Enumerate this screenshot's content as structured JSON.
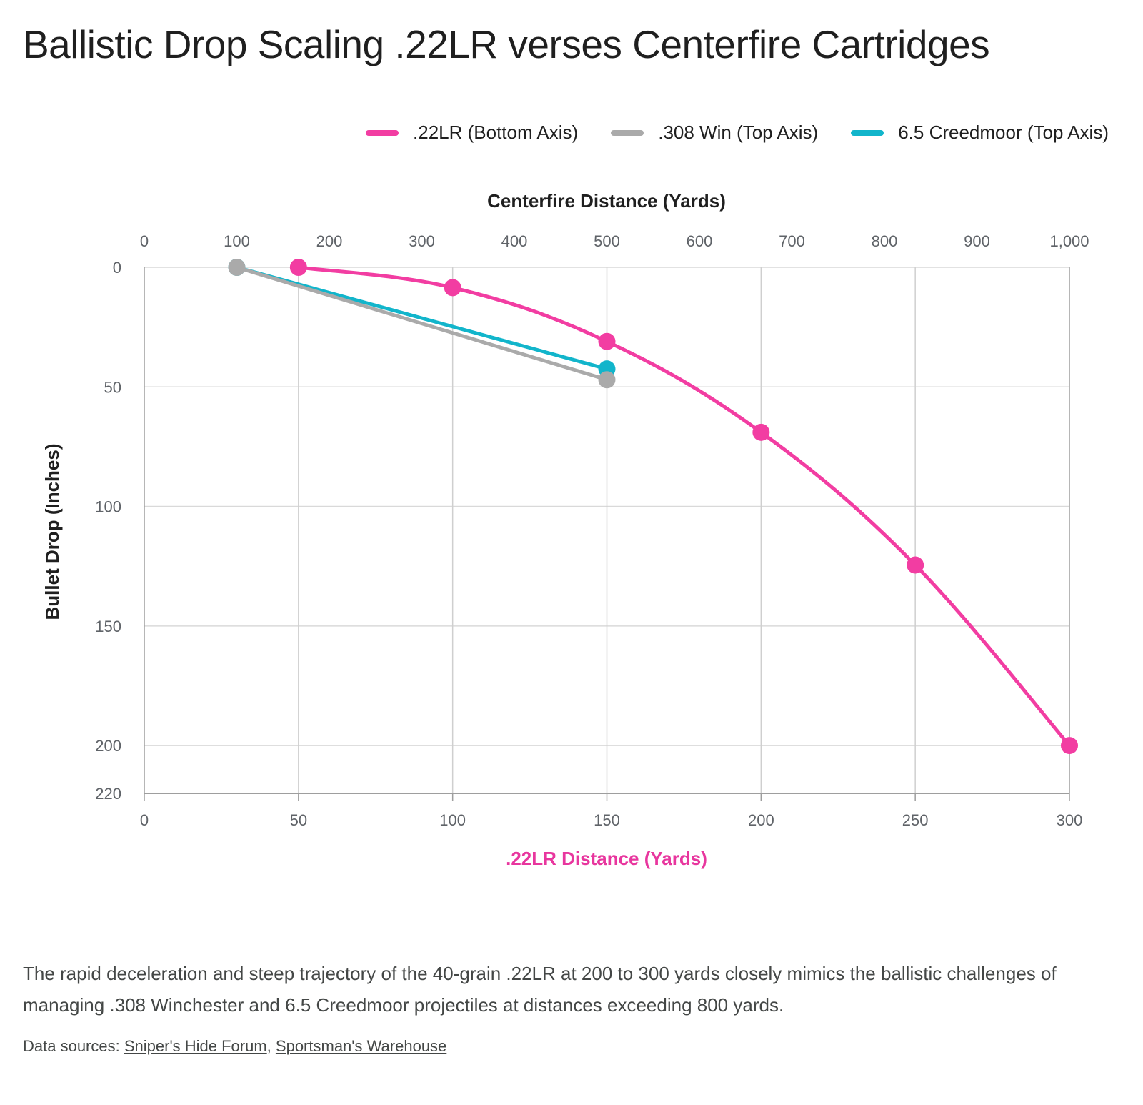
{
  "title": "Ballistic Drop Scaling .22LR verses Centerfire Cartridges",
  "caption": "The rapid deceleration and steep trajectory of the 40-grain .22LR at 200 to 300 yards closely mimics the ballistic challenges of managing .308 Winchester and 6.5 Creedmoor projectiles at distances exceeding 800 yards.",
  "sources": {
    "prefix": "Data sources: ",
    "separator": ", ",
    "links": [
      "Sniper's Hide Forum",
      "Sportsman's Warehouse"
    ]
  },
  "chart_data": {
    "type": "line",
    "legend_position": "top-right",
    "grid": true,
    "y_axis": {
      "label": "Bullet Drop (Inches)",
      "range": [
        0,
        220
      ],
      "inverted": true,
      "ticks": [
        0,
        50,
        100,
        150,
        200,
        220
      ],
      "tick_labels": [
        "0",
        "50",
        "100",
        "150",
        "200",
        "220"
      ]
    },
    "x_axis_bottom": {
      "label": ".22LR Distance (Yards)",
      "label_color": "#e8369e",
      "range": [
        0,
        300
      ],
      "ticks": [
        0,
        50,
        100,
        150,
        200,
        250,
        300
      ],
      "tick_labels": [
        "0",
        "50",
        "100",
        "150",
        "200",
        "250",
        "300"
      ]
    },
    "x_axis_top": {
      "label": "Centerfire Distance (Yards)",
      "range": [
        0,
        1000
      ],
      "ticks": [
        0,
        100,
        200,
        300,
        400,
        500,
        600,
        700,
        800,
        900,
        1000
      ],
      "tick_labels": [
        "0",
        "100",
        "200",
        "300",
        "400",
        "500",
        "600",
        "700",
        "800",
        "900",
        "1,000"
      ]
    },
    "series": [
      {
        "name": ".22LR (Bottom Axis)",
        "axis": "bottom",
        "color": "#f23da2",
        "smooth": true,
        "x": [
          50,
          100,
          150,
          200,
          250,
          300
        ],
        "y": [
          0,
          8.5,
          31,
          69,
          124.5,
          200
        ]
      },
      {
        "name": ".308 Win (Top Axis)",
        "axis": "top",
        "color": "#aaaaaa",
        "smooth": false,
        "x": [
          100,
          500
        ],
        "y": [
          0,
          47
        ]
      },
      {
        "name": "6.5 Creedmoor (Top Axis)",
        "axis": "top",
        "color": "#12b5cb",
        "smooth": false,
        "x": [
          100,
          500
        ],
        "y": [
          0,
          42.5
        ]
      }
    ]
  }
}
